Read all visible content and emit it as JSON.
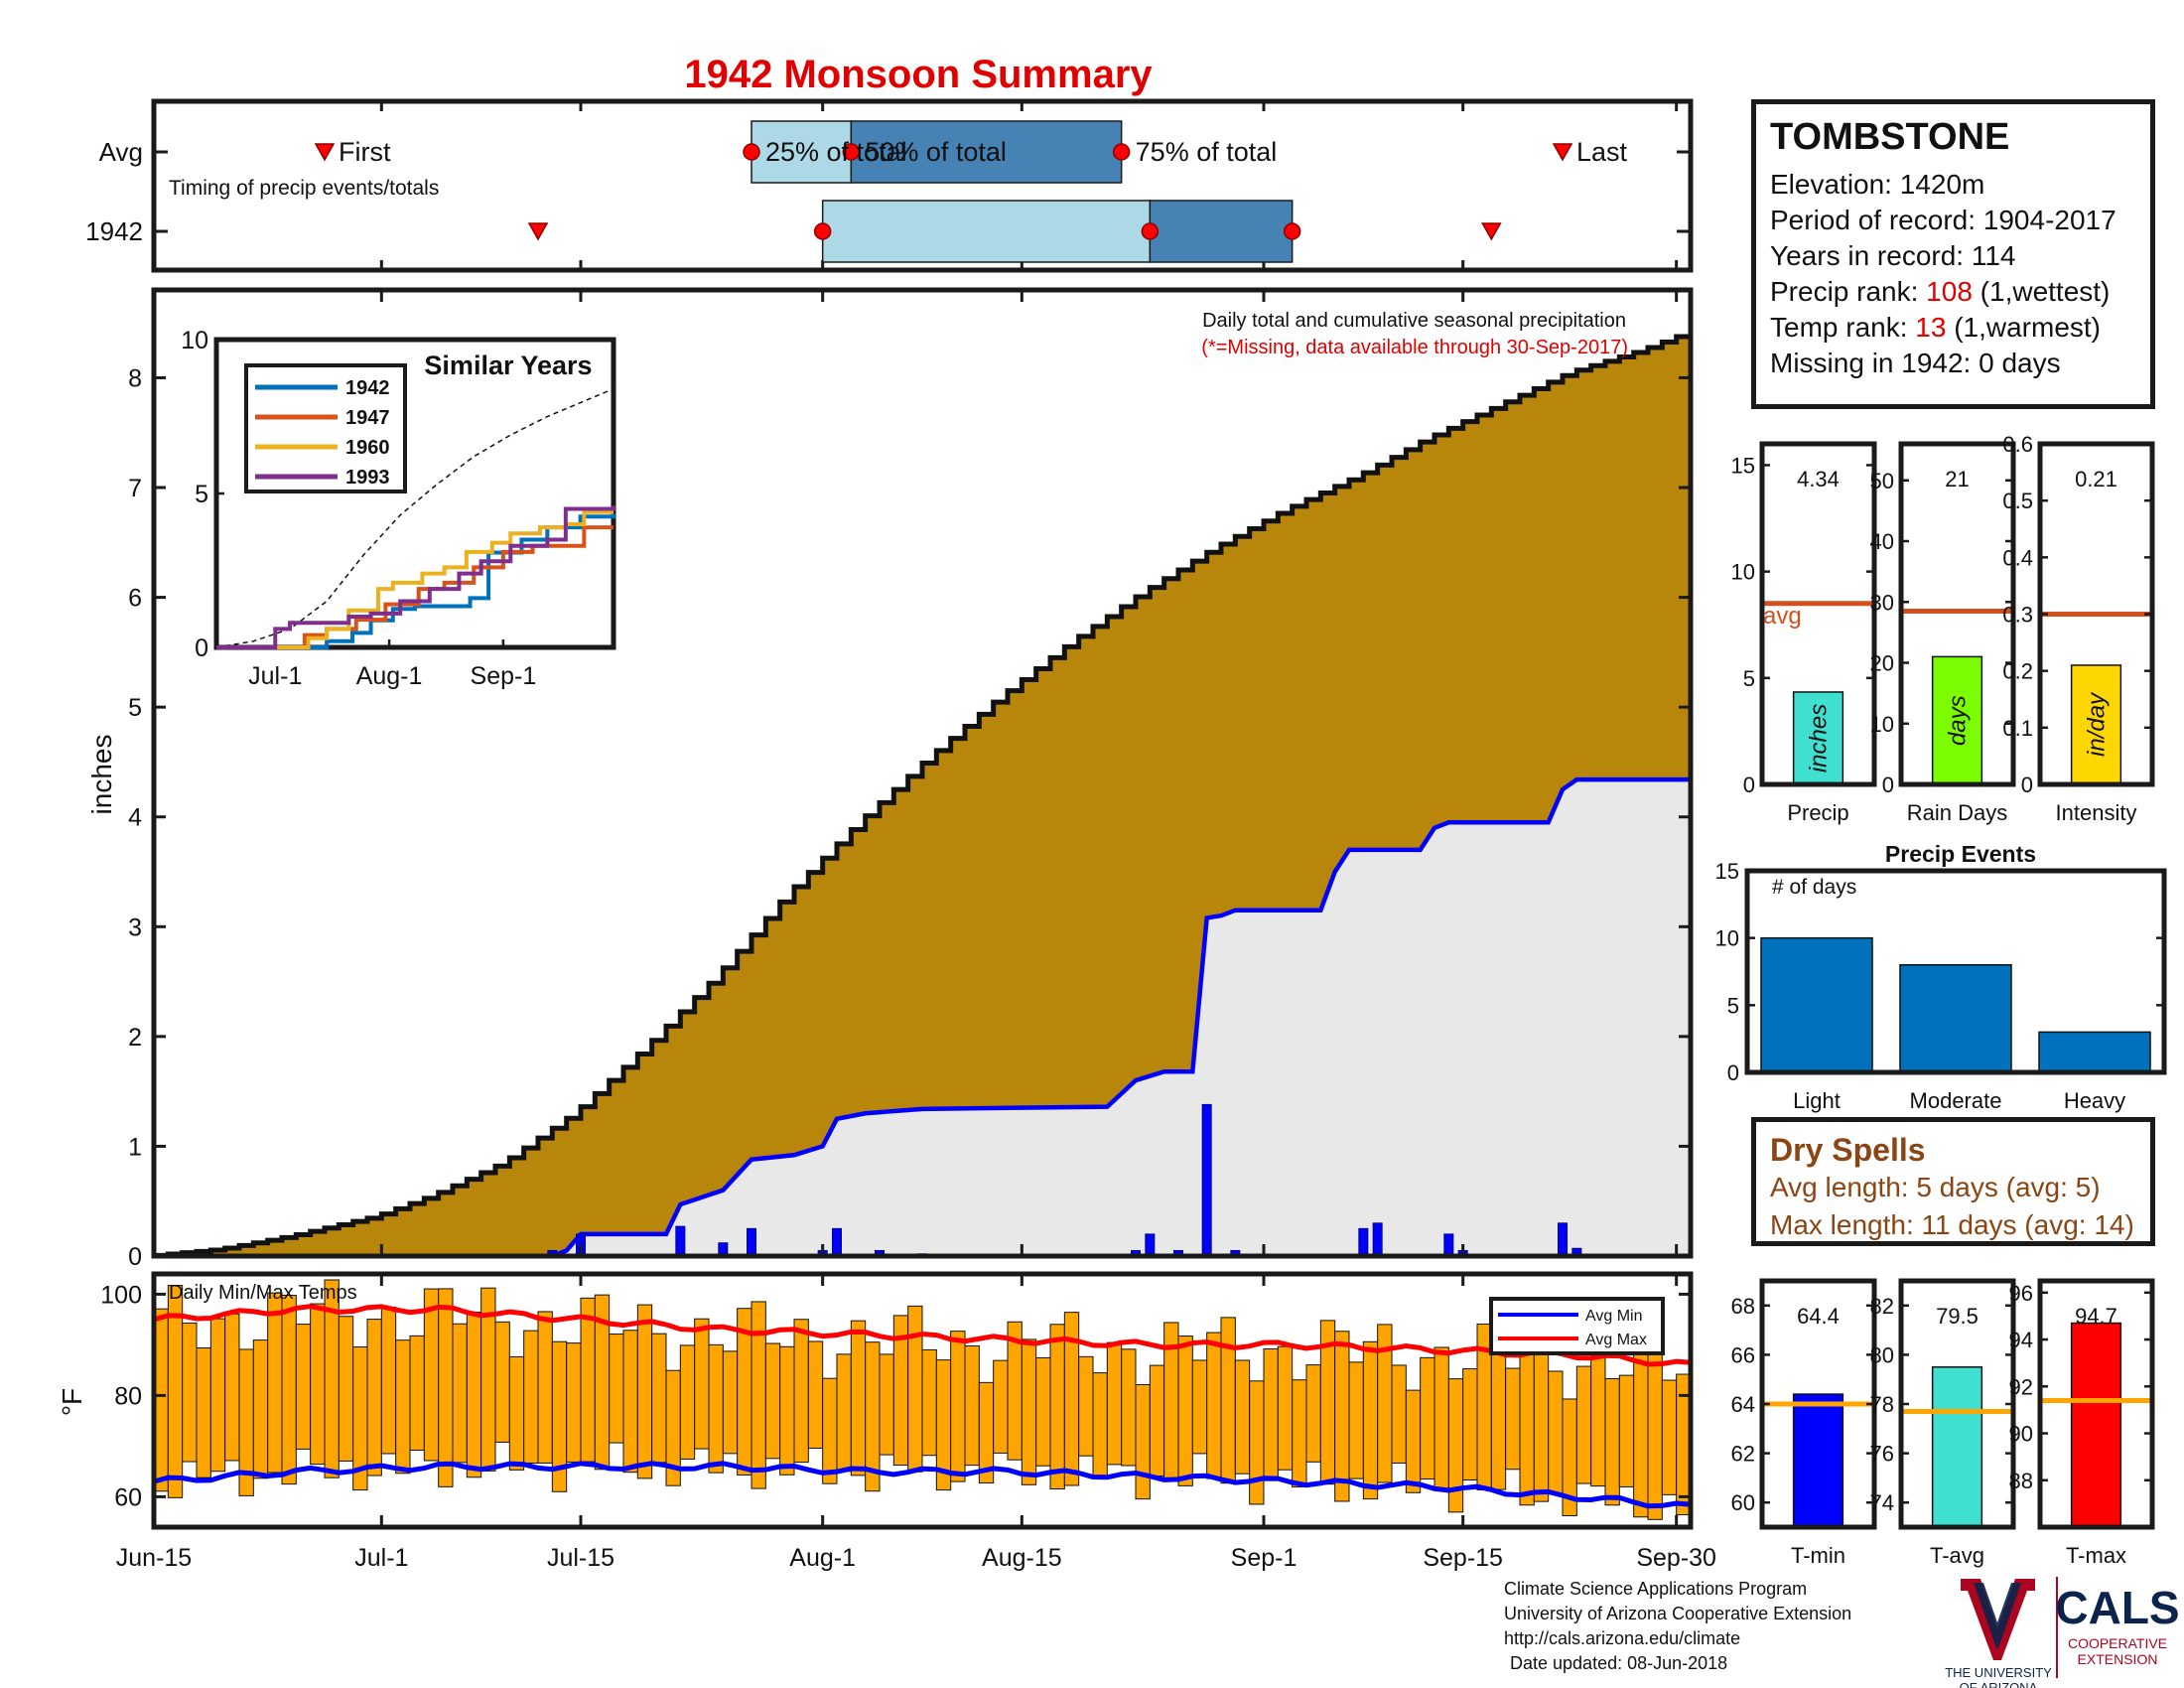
{
  "title": "1942 Monsoon Summary",
  "station": {
    "name": "TOMBSTONE",
    "elevation_label": "Elevation: ",
    "elevation": "1420m",
    "period_label": "Period of record: ",
    "period": "1904-2017",
    "years_label": "Years in record: ",
    "years": "114",
    "precip_rank_label": "Precip rank: ",
    "precip_rank": "108",
    "precip_rank_note": " (1,wettest)",
    "temp_rank_label": "Temp rank: ",
    "temp_rank": "13",
    "temp_rank_note": " (1,warmest)",
    "missing_label": "Missing in 1942: ",
    "missing": "0 days"
  },
  "dry_spells": {
    "title": "Dry Spells",
    "avg_label": "Avg length: 5 days (avg: 5)",
    "max_label": "Max length: 11 days (avg: 14)"
  },
  "credits": {
    "line1": "Climate Science Applications Program",
    "line2": "University of Arizona Cooperative Extension",
    "line3": "http://cals.arizona.edu/climate",
    "line4": "Date updated: 08-Jun-2018"
  },
  "logos": {
    "ua_text1": "THE UNIVERSITY",
    "ua_text2": "OF ARIZONA",
    "cals": "CALS",
    "cals_sub1": "COOPERATIVE",
    "cals_sub2": "EXTENSION"
  },
  "colors": {
    "avg_cumulative": "#B8860B",
    "year_cumulative": "#0000ff",
    "below_fill": "#e8e8e8",
    "temp_bars": "#FFA500",
    "avg_max": "#ff0000",
    "avg_min": "#0000ff",
    "quartile_light": "#ADD8E6",
    "quartile_dark": "#4682B4",
    "avg_line": "#D2501E"
  },
  "chart_data": [
    {
      "type": "timeline",
      "rows": [
        "Avg",
        "1942"
      ],
      "note": "Timing of precip events/totals",
      "avg": {
        "first": "Jun-27",
        "q25": "Jul-27",
        "q50": "Aug-3",
        "q75": "Aug-22",
        "last": "Sep-22",
        "first_label": "First",
        "q25_label": "25% of total",
        "q50_label": "50% of total",
        "q75_label": "75% of total",
        "last_label": "Last"
      },
      "y1942": {
        "first": "Jul-12",
        "q25": "Aug-1",
        "q50": "Aug-24",
        "q75": "Sep-3",
        "last": "Sep-17"
      },
      "xrange": [
        "Jun-15",
        "Sep-30"
      ]
    },
    {
      "type": "area",
      "title": "Daily total and cumulative seasonal precipitation",
      "subtitle": "(*=Missing, data available through 30-Sep-2017)",
      "ylabel": "inches",
      "ylim": [
        0,
        8.8
      ],
      "yticks": [
        0,
        1,
        2,
        3,
        4,
        5,
        6,
        7,
        8
      ],
      "xticks": [
        "Jun-15",
        "Jul-1",
        "Jul-15",
        "Aug-1",
        "Aug-15",
        "Sep-1",
        "Sep-15",
        "Sep-30"
      ],
      "avg_cumulative": [
        [
          0,
          0
        ],
        [
          5,
          0.06
        ],
        [
          10,
          0.18
        ],
        [
          16,
          0.36
        ],
        [
          20,
          0.55
        ],
        [
          25,
          0.85
        ],
        [
          30,
          1.3
        ],
        [
          35,
          1.9
        ],
        [
          40,
          2.55
        ],
        [
          45,
          3.3
        ],
        [
          50,
          3.95
        ],
        [
          55,
          4.55
        ],
        [
          60,
          5.1
        ],
        [
          65,
          5.6
        ],
        [
          70,
          6.05
        ],
        [
          75,
          6.45
        ],
        [
          80,
          6.8
        ],
        [
          85,
          7.1
        ],
        [
          90,
          7.45
        ],
        [
          95,
          7.75
        ],
        [
          100,
          8.05
        ],
        [
          105,
          8.25
        ],
        [
          108,
          8.4
        ]
      ],
      "year_cumulative": [
        [
          0,
          0
        ],
        [
          28,
          0
        ],
        [
          29,
          0.05
        ],
        [
          30,
          0.2
        ],
        [
          36,
          0.2
        ],
        [
          37,
          0.47
        ],
        [
          40,
          0.6
        ],
        [
          42,
          0.88
        ],
        [
          45,
          0.92
        ],
        [
          47,
          1.0
        ],
        [
          48,
          1.25
        ],
        [
          50,
          1.3
        ],
        [
          54,
          1.34
        ],
        [
          67,
          1.36
        ],
        [
          69,
          1.6
        ],
        [
          71,
          1.68
        ],
        [
          73,
          1.68
        ],
        [
          74,
          3.08
        ],
        [
          75,
          3.1
        ],
        [
          76,
          3.15
        ],
        [
          82,
          3.15
        ],
        [
          83,
          3.5
        ],
        [
          84,
          3.7
        ],
        [
          89,
          3.7
        ],
        [
          90,
          3.9
        ],
        [
          91,
          3.95
        ],
        [
          92,
          3.95
        ],
        [
          98,
          3.95
        ],
        [
          99,
          4.25
        ],
        [
          100,
          4.34
        ],
        [
          108,
          4.34
        ]
      ],
      "daily_bars": [
        [
          28,
          0.05
        ],
        [
          30,
          0.2
        ],
        [
          37,
          0.27
        ],
        [
          40,
          0.12
        ],
        [
          42,
          0.25
        ],
        [
          47,
          0.05
        ],
        [
          48,
          0.25
        ],
        [
          51,
          0.05
        ],
        [
          54,
          0.02
        ],
        [
          69,
          0.05
        ],
        [
          70,
          0.2
        ],
        [
          72,
          0.05
        ],
        [
          74,
          1.38
        ],
        [
          76,
          0.05
        ],
        [
          85,
          0.25
        ],
        [
          86,
          0.3
        ],
        [
          91,
          0.2
        ],
        [
          92,
          0.05
        ],
        [
          99,
          0.3
        ],
        [
          100,
          0.07
        ]
      ],
      "xlim_days": [
        0,
        108
      ]
    },
    {
      "type": "line",
      "title": "Similar Years",
      "ylim": [
        0,
        10
      ],
      "yticks": [
        0,
        5,
        10
      ],
      "xticks": [
        "Jul-1",
        "Aug-1",
        "Sep-1"
      ],
      "series": [
        {
          "name": "1942",
          "color": "#0072BD",
          "points": [
            [
              0,
              0
            ],
            [
              28,
              0
            ],
            [
              30,
              0.2
            ],
            [
              37,
              0.47
            ],
            [
              42,
              0.88
            ],
            [
              48,
              1.25
            ],
            [
              54,
              1.34
            ],
            [
              69,
              1.6
            ],
            [
              74,
              3.08
            ],
            [
              83,
              3.5
            ],
            [
              90,
              3.9
            ],
            [
              99,
              4.25
            ],
            [
              108,
              4.34
            ]
          ]
        },
        {
          "name": "1947",
          "color": "#D95319",
          "points": [
            [
              0,
              0
            ],
            [
              20,
              0
            ],
            [
              24,
              0.4
            ],
            [
              30,
              0.6
            ],
            [
              38,
              0.9
            ],
            [
              46,
              1.4
            ],
            [
              55,
              1.9
            ],
            [
              62,
              2.1
            ],
            [
              70,
              2.6
            ],
            [
              78,
              3.1
            ],
            [
              86,
              3.3
            ],
            [
              95,
              3.3
            ],
            [
              100,
              3.9
            ],
            [
              108,
              3.9
            ]
          ]
        },
        {
          "name": "1960",
          "color": "#EDB120",
          "points": [
            [
              0,
              0
            ],
            [
              22,
              0
            ],
            [
              25,
              0.3
            ],
            [
              30,
              0.6
            ],
            [
              36,
              1.2
            ],
            [
              44,
              1.9
            ],
            [
              48,
              2.1
            ],
            [
              56,
              2.4
            ],
            [
              62,
              2.6
            ],
            [
              68,
              3.1
            ],
            [
              75,
              3.4
            ],
            [
              80,
              3.7
            ],
            [
              88,
              3.9
            ],
            [
              95,
              4.0
            ],
            [
              100,
              4.4
            ],
            [
              108,
              4.4
            ]
          ]
        },
        {
          "name": "1993",
          "color": "#7E2F8E",
          "points": [
            [
              0,
              0
            ],
            [
              14,
              0
            ],
            [
              16,
              0.6
            ],
            [
              20,
              0.8
            ],
            [
              30,
              0.8
            ],
            [
              36,
              1.0
            ],
            [
              42,
              1.1
            ],
            [
              50,
              1.5
            ],
            [
              58,
              1.9
            ],
            [
              66,
              2.4
            ],
            [
              72,
              2.8
            ],
            [
              80,
              3.3
            ],
            [
              90,
              3.5
            ],
            [
              95,
              4.5
            ],
            [
              108,
              4.6
            ]
          ]
        }
      ],
      "avg_series": {
        "name": "Avg",
        "points": [
          [
            0,
            0
          ],
          [
            10,
            0.2
          ],
          [
            20,
            0.6
          ],
          [
            30,
            1.5
          ],
          [
            40,
            3.0
          ],
          [
            50,
            4.3
          ],
          [
            60,
            5.3
          ],
          [
            70,
            6.2
          ],
          [
            80,
            6.9
          ],
          [
            90,
            7.5
          ],
          [
            100,
            8.0
          ],
          [
            108,
            8.4
          ]
        ]
      },
      "xlim_days": [
        0,
        108
      ]
    },
    {
      "type": "bar",
      "title": "Daily Min/Max Temps",
      "ylabel": "°F",
      "ylim": [
        54,
        104
      ],
      "yticks": [
        60,
        80,
        100
      ],
      "legend": [
        "Avg Min",
        "Avg Max"
      ],
      "legend_position": "top-right",
      "avg_max": [
        [
          0,
          95
        ],
        [
          10,
          97
        ],
        [
          20,
          97
        ],
        [
          30,
          95
        ],
        [
          40,
          93
        ],
        [
          50,
          92
        ],
        [
          60,
          91
        ],
        [
          70,
          90
        ],
        [
          80,
          90
        ],
        [
          90,
          89
        ],
        [
          100,
          88
        ],
        [
          108,
          86
        ]
      ],
      "avg_min": [
        [
          0,
          63
        ],
        [
          10,
          65
        ],
        [
          20,
          66
        ],
        [
          30,
          66
        ],
        [
          40,
          66
        ],
        [
          50,
          65
        ],
        [
          60,
          65
        ],
        [
          70,
          64
        ],
        [
          80,
          63
        ],
        [
          90,
          62
        ],
        [
          100,
          60
        ],
        [
          108,
          58
        ]
      ],
      "xlim_days": [
        0,
        108
      ]
    },
    {
      "type": "bar",
      "categories": [
        "Precip"
      ],
      "values": [
        4.34
      ],
      "value_label": "4.34",
      "unit": "inches",
      "ylim": [
        0,
        16
      ],
      "yticks": [
        0,
        5,
        10,
        15
      ],
      "avg": 8.5,
      "avg_label": "avg",
      "color": "#40E0D0"
    },
    {
      "type": "bar",
      "categories": [
        "Rain Days"
      ],
      "values": [
        21
      ],
      "value_label": "21",
      "unit": "days",
      "ylim": [
        0,
        56
      ],
      "yticks": [
        0,
        10,
        20,
        30,
        40,
        50
      ],
      "avg": 28.5,
      "color": "#7CFC00"
    },
    {
      "type": "bar",
      "categories": [
        "Intensity"
      ],
      "values": [
        0.21
      ],
      "value_label": "0.21",
      "unit": "in/day",
      "ylim": [
        0,
        0.6
      ],
      "yticks": [
        0,
        0.1,
        0.2,
        0.3,
        0.4,
        0.5,
        0.6
      ],
      "avg": 0.3,
      "color": "#FFD700"
    },
    {
      "type": "bar",
      "title": "Precip Events",
      "ylabel": "# of days",
      "categories": [
        "Light",
        "Moderate",
        "Heavy"
      ],
      "values": [
        10,
        8,
        3
      ],
      "ylim": [
        0,
        15
      ],
      "yticks": [
        0,
        5,
        10,
        15
      ],
      "color": "#0072BD"
    },
    {
      "type": "bar",
      "categories": [
        "T-min"
      ],
      "values": [
        64.4
      ],
      "value_label": "64.4",
      "ylim": [
        59,
        69
      ],
      "yticks": [
        60,
        62,
        64,
        66,
        68
      ],
      "avg": 64,
      "color": "#0000ff"
    },
    {
      "type": "bar",
      "categories": [
        "T-avg"
      ],
      "values": [
        79.5
      ],
      "value_label": "79.5",
      "ylim": [
        73,
        83
      ],
      "yticks": [
        74,
        76,
        78,
        80,
        82
      ],
      "avg": 77.7,
      "color": "#40E0D0"
    },
    {
      "type": "bar",
      "categories": [
        "T-max"
      ],
      "values": [
        94.7
      ],
      "value_label": "94.7",
      "ylim": [
        86,
        96.5
      ],
      "yticks": [
        88,
        90,
        92,
        94,
        96
      ],
      "avg": 91.4,
      "color": "#ff0000"
    }
  ]
}
